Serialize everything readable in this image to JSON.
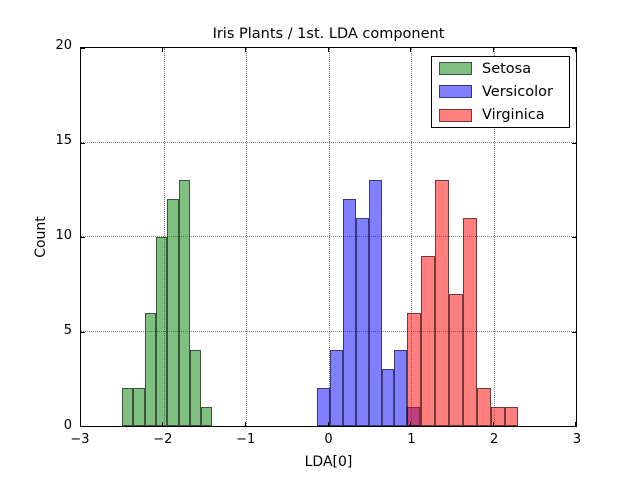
{
  "title": "Iris Plants / 1st. LDA component",
  "xlabel": "LDA[0]",
  "ylabel": "Count",
  "legend": {
    "position": "upper-right",
    "entries": [
      {
        "label": "Setosa",
        "fill": "rgba(0,128,0,0.5)",
        "edge": "rgba(0,0,0,0.55)"
      },
      {
        "label": "Versicolor",
        "fill": "rgba(0,0,255,0.5)",
        "edge": "rgba(0,0,0,0.55)"
      },
      {
        "label": "Virginica",
        "fill": "rgba(255,0,0,0.5)",
        "edge": "rgba(0,0,0,0.55)"
      }
    ]
  },
  "chart_data": {
    "type": "bar",
    "subtype": "overlaid-histograms",
    "title": "Iris Plants / 1st. LDA component",
    "xlabel": "LDA[0]",
    "ylabel": "Count",
    "xlim": [
      -3,
      3
    ],
    "ylim": [
      0,
      20
    ],
    "x_ticks": [
      -3,
      -2,
      -1,
      0,
      1,
      2,
      3
    ],
    "x_tick_labels": [
      "−3",
      "−2",
      "−1",
      "0",
      "1",
      "2",
      "3"
    ],
    "y_ticks": [
      0,
      5,
      10,
      15,
      20
    ],
    "y_tick_labels": [
      "0",
      "5",
      "10",
      "15",
      "20"
    ],
    "x_gridlines": [
      -2,
      -1,
      0,
      1,
      2
    ],
    "y_gridlines": [
      5,
      10,
      15
    ],
    "grid_style": "dotted",
    "legend_position": "upper-right",
    "bar_alpha": 0.5,
    "series": [
      {
        "name": "Setosa",
        "fill": "rgba(0,128,0,0.5)",
        "bin_start": -2.502,
        "bin_width": 0.137,
        "counts": [
          2,
          2,
          6,
          10,
          12,
          13,
          4,
          1
        ],
        "total": 50
      },
      {
        "name": "Versicolor",
        "fill": "rgba(0,0,255,0.5)",
        "bin_start": -0.135,
        "bin_width": 0.1557,
        "counts": [
          2,
          4,
          12,
          11,
          13,
          3,
          4,
          1
        ],
        "total": 50
      },
      {
        "name": "Virginica",
        "fill": "rgba(255,0,0,0.5)",
        "bin_start": 0.951,
        "bin_width": 0.169,
        "counts": [
          6,
          9,
          13,
          7,
          11,
          2,
          1,
          1
        ],
        "total": 50
      }
    ]
  }
}
